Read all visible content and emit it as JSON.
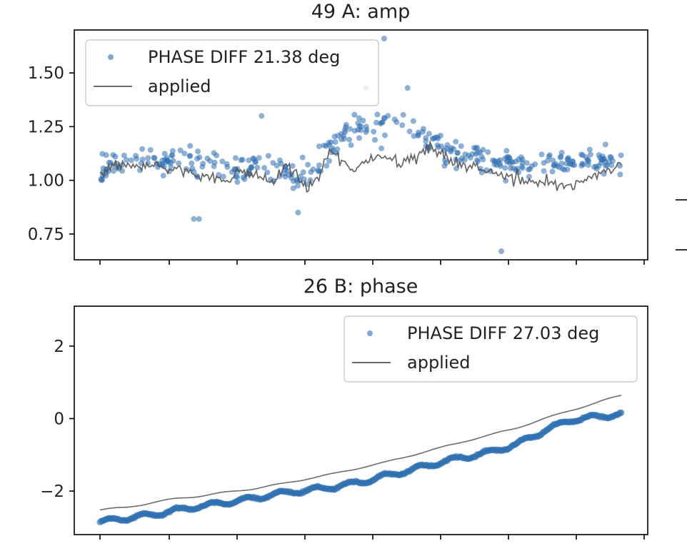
{
  "figure": {
    "accent_color": "#2f6fb0",
    "applied_color": "#555555"
  },
  "chart_data": [
    {
      "type": "scatter",
      "title": "49 A: amp",
      "xlabel": "",
      "ylabel": "",
      "ylim": [
        0.63,
        1.7
      ],
      "yticks": [
        0.75,
        1.0,
        1.25,
        1.5
      ],
      "ytick_labels": [
        "0.75",
        "1.00",
        "1.25",
        "1.50"
      ],
      "grid": false,
      "legend_position": "top-left",
      "n_points": 380,
      "series": [
        {
          "name": "PHASE DIFF 21.38 deg",
          "kind": "scatter",
          "trend_x": [
            0,
            0.05,
            0.1,
            0.15,
            0.2,
            0.25,
            0.3,
            0.35,
            0.4,
            0.45,
            0.5,
            0.55,
            0.6,
            0.65,
            0.7,
            0.75,
            0.8,
            0.85,
            0.9,
            0.95,
            1.0
          ],
          "trend_y": [
            1.06,
            1.08,
            1.09,
            1.1,
            1.07,
            1.05,
            1.08,
            1.04,
            1.02,
            1.17,
            1.24,
            1.26,
            1.25,
            1.14,
            1.1,
            1.09,
            1.08,
            1.07,
            1.08,
            1.09,
            1.09
          ],
          "spread": 0.09,
          "outliers": [
            [
              0.51,
              1.43
            ],
            [
              0.545,
              1.66
            ],
            [
              0.59,
              1.43
            ],
            [
              0.31,
              1.3
            ],
            [
              0.18,
              0.82
            ],
            [
              0.19,
              0.82
            ],
            [
              0.77,
              0.67
            ],
            [
              0.38,
              0.85
            ]
          ]
        },
        {
          "name": "applied",
          "kind": "line",
          "x": [
            0,
            0.03,
            0.06,
            0.09,
            0.12,
            0.15,
            0.18,
            0.21,
            0.24,
            0.27,
            0.3,
            0.33,
            0.36,
            0.38,
            0.4,
            0.42,
            0.44,
            0.46,
            0.48,
            0.5,
            0.52,
            0.55,
            0.58,
            0.61,
            0.64,
            0.67,
            0.7,
            0.73,
            0.76,
            0.79,
            0.82,
            0.85,
            0.88,
            0.91,
            0.94,
            0.97,
            1.0
          ],
          "y": [
            1.04,
            1.07,
            1.06,
            1.08,
            1.06,
            1.05,
            1.03,
            1.02,
            1.0,
            1.04,
            1.02,
            0.99,
            1.07,
            1.01,
            0.96,
            1.02,
            1.14,
            1.1,
            1.05,
            1.08,
            1.1,
            1.12,
            1.08,
            1.12,
            1.15,
            1.1,
            1.07,
            1.05,
            1.04,
            1.02,
            1.0,
            0.99,
            0.97,
            0.97,
            1.02,
            1.04,
            1.08
          ]
        }
      ]
    },
    {
      "type": "scatter",
      "title": "26 B: phase",
      "xlabel": "",
      "ylabel": "",
      "ylim": [
        -3.2,
        3.1
      ],
      "yticks": [
        -2,
        0,
        2
      ],
      "ytick_labels": [
        "−2",
        "0",
        "2"
      ],
      "grid": false,
      "legend_position": "top-right",
      "n_points": 420,
      "series": [
        {
          "name": "PHASE DIFF 27.03 deg",
          "kind": "scatter",
          "x": [
            0,
            0.05,
            0.1,
            0.15,
            0.2,
            0.25,
            0.3,
            0.35,
            0.4,
            0.45,
            0.5,
            0.55,
            0.6,
            0.65,
            0.7,
            0.75,
            0.8,
            0.85,
            0.9,
            0.95,
            1.0
          ],
          "y": [
            -2.85,
            -2.75,
            -2.65,
            -2.52,
            -2.4,
            -2.3,
            -2.18,
            -2.05,
            -1.98,
            -1.88,
            -1.75,
            -1.58,
            -1.4,
            -1.22,
            -1.05,
            -0.92,
            -0.7,
            -0.35,
            -0.05,
            0.05,
            0.12
          ]
        },
        {
          "name": "applied",
          "kind": "line",
          "x": [
            0,
            0.05,
            0.1,
            0.15,
            0.2,
            0.25,
            0.3,
            0.35,
            0.4,
            0.45,
            0.5,
            0.55,
            0.6,
            0.65,
            0.7,
            0.75,
            0.8,
            0.85,
            0.9,
            0.95,
            1.0
          ],
          "y": [
            -2.52,
            -2.45,
            -2.32,
            -2.2,
            -2.12,
            -2.02,
            -1.92,
            -1.8,
            -1.65,
            -1.52,
            -1.35,
            -1.2,
            -1.0,
            -0.82,
            -0.62,
            -0.45,
            -0.25,
            -0.02,
            0.22,
            0.42,
            0.65
          ]
        }
      ]
    }
  ]
}
